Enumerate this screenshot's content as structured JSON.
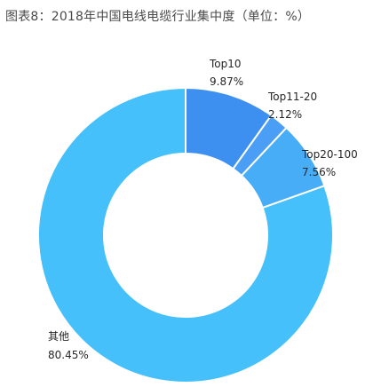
{
  "title": "图表8：2018年中国电线电缆行业集中度（单位：%）",
  "chart_data": {
    "type": "pie",
    "donut": true,
    "categories": [
      "Top10",
      "Top11-20",
      "Top20-100",
      "其他"
    ],
    "values": [
      9.87,
      2.12,
      7.56,
      80.45
    ],
    "value_labels": [
      "9.87%",
      "2.12%",
      "7.56%",
      "80.45%"
    ],
    "colors": [
      "#3d8ff0",
      "#4a9ef5",
      "#48adf7",
      "#45c0fa"
    ],
    "start_angle": "12 o'clock",
    "direction": "clockwise",
    "legend": "none"
  }
}
